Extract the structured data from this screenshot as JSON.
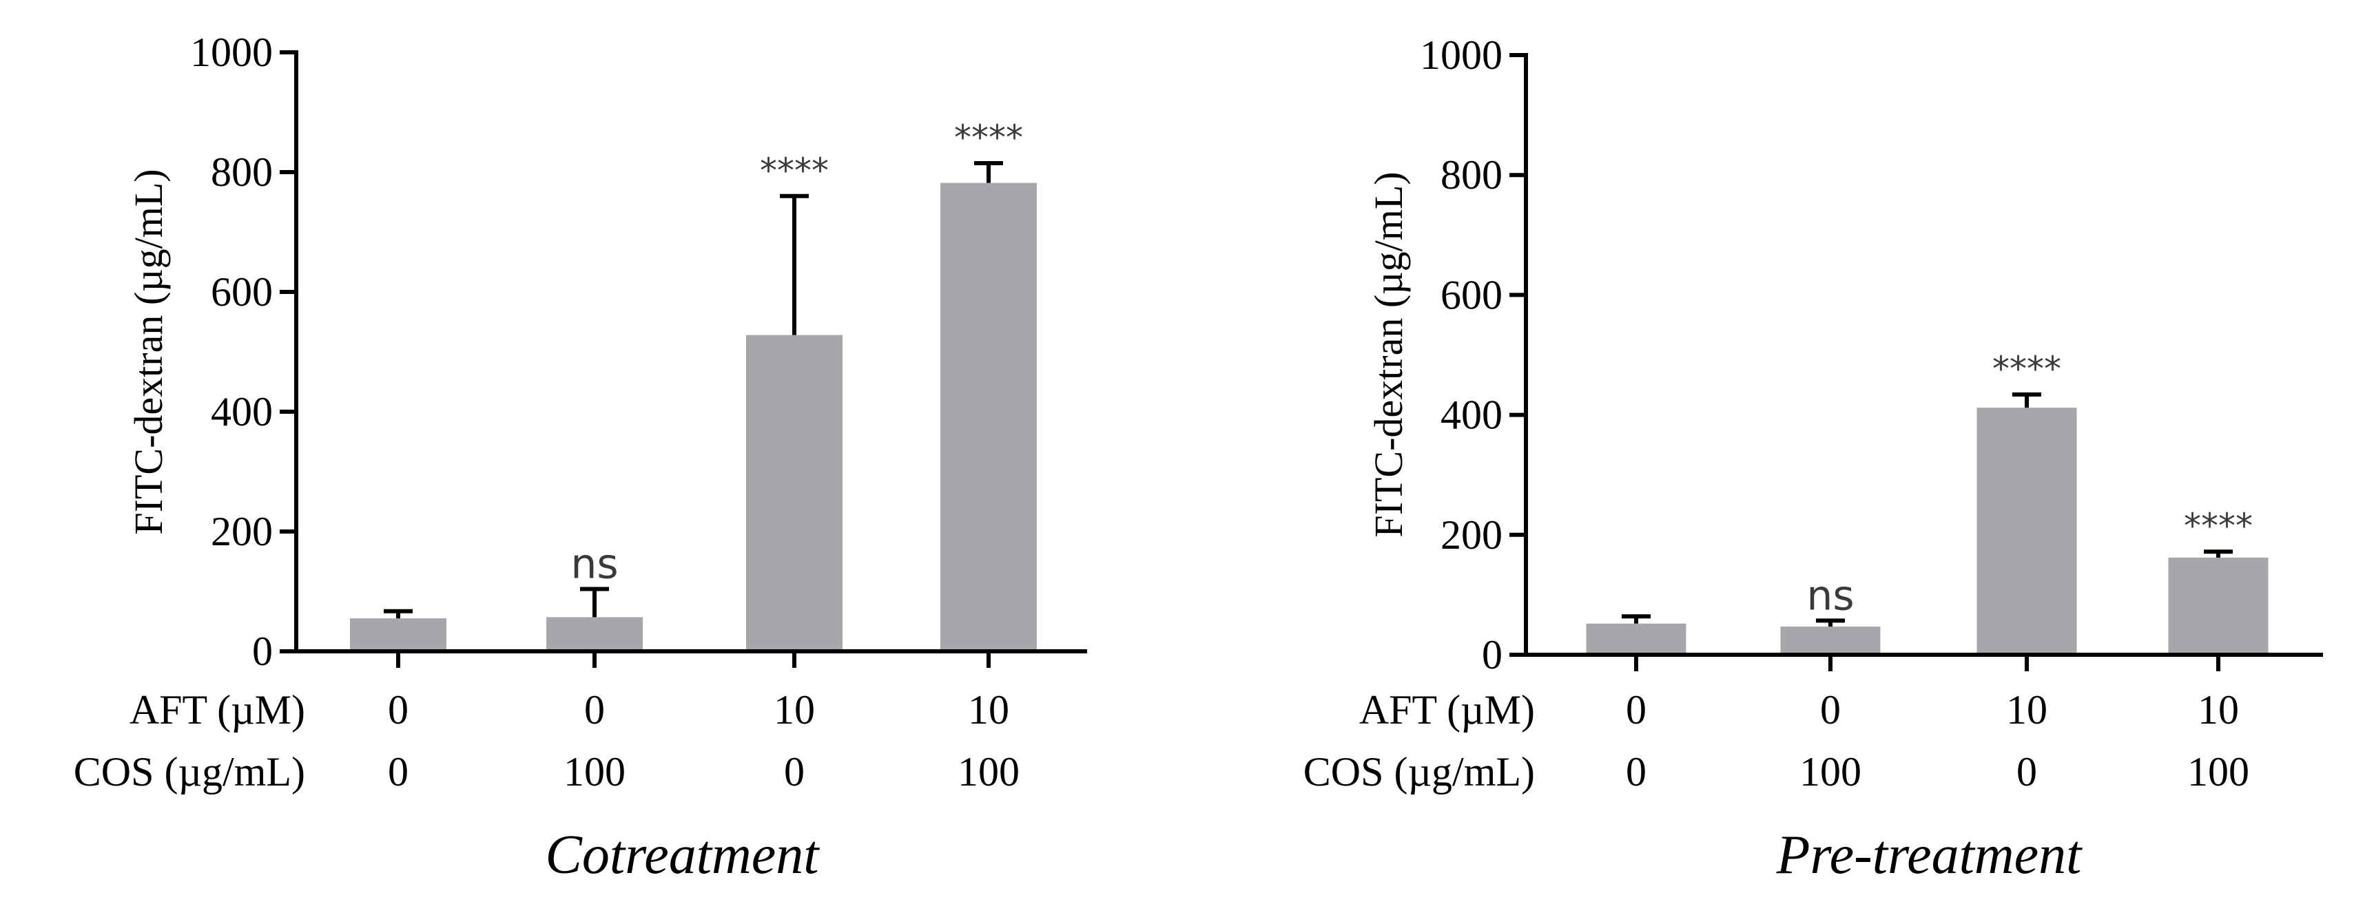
{
  "chart_data": [
    {
      "type": "bar",
      "title": "Cotreatment",
      "ylabel": "FITC-dextran (µg/mL)",
      "xlabel": "",
      "ylim": [
        0,
        1000
      ],
      "yticks": [
        "0",
        "200",
        "400",
        "600",
        "800",
        "1000"
      ],
      "row_labels": [
        "AFT (µM)",
        "COS (µg/mL)"
      ],
      "aft_values": [
        "0",
        "0",
        "10",
        "10"
      ],
      "cos_values": [
        "0",
        "100",
        "0",
        "100"
      ],
      "values": [
        55,
        57,
        528,
        782
      ],
      "errors": [
        12,
        47,
        232,
        33
      ],
      "significance": [
        "",
        "ns",
        "****",
        "****"
      ],
      "bar_color": "#a7a6aa"
    },
    {
      "type": "bar",
      "title": "Pre-treatment",
      "ylabel": "FITC-dextran (µg/mL)",
      "xlabel": "",
      "ylim": [
        0,
        1000
      ],
      "yticks": [
        "0",
        "200",
        "400",
        "600",
        "800",
        "1000"
      ],
      "row_labels": [
        "AFT (µM)",
        "COS (µg/mL)"
      ],
      "aft_values": [
        "0",
        "0",
        "10",
        "10"
      ],
      "cos_values": [
        "0",
        "100",
        "0",
        "100"
      ],
      "values": [
        52,
        47,
        412,
        162
      ],
      "errors": [
        12,
        10,
        22,
        10
      ],
      "significance": [
        "",
        "ns",
        "****",
        "****"
      ],
      "bar_color": "#a7a6aa"
    }
  ]
}
